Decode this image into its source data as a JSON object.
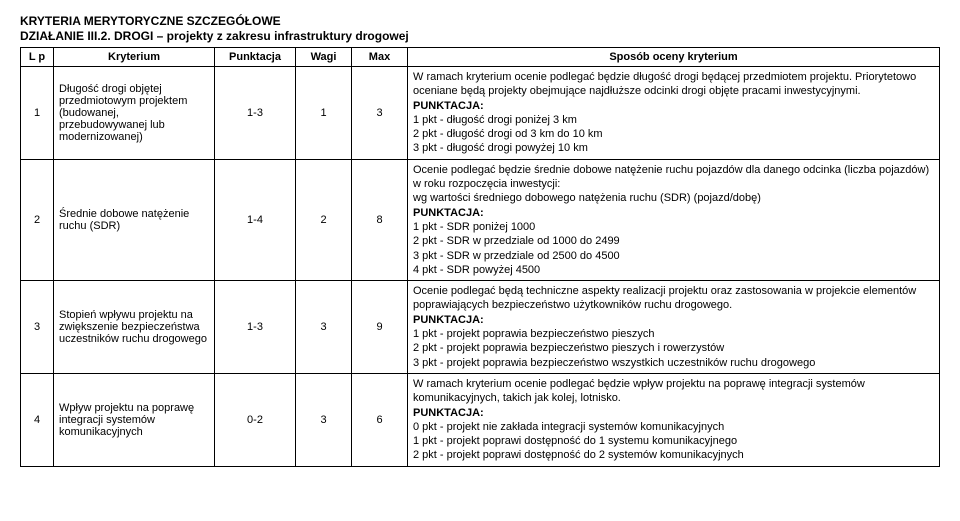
{
  "header": {
    "line1": "KRYTERIA MERYTORYCZNE SZCZEGÓŁOWE",
    "line2": "DZIAŁANIE III.2. DROGI – projekty z zakresu infrastruktury drogowej"
  },
  "table": {
    "columns": {
      "lp": "L p",
      "kryterium": "Kryterium",
      "punktacja": "Punktacja",
      "wagi": "Wagi",
      "max": "Max",
      "sposob": "Sposób oceny kryterium"
    },
    "rows": [
      {
        "lp": "1",
        "kryterium": "Długość drogi objętej przedmiotowym projektem (budowanej, przebudowywanej lub modernizowanej)",
        "punktacja": "1-3",
        "wagi": "1",
        "max": "3",
        "sposob_intro": "W ramach kryterium ocenie podlegać będzie długość drogi będącej przedmiotem projektu. Priorytetowo oceniane będą projekty obejmujące najdłuższe odcinki drogi objęte pracami inwestycyjnymi.",
        "punktacja_label": "PUNKTACJA:",
        "points": [
          "1 pkt - długość drogi poniżej 3 km",
          "2 pkt - długość drogi od 3 km do 10 km",
          "3 pkt - długość drogi powyżej 10 km"
        ]
      },
      {
        "lp": "2",
        "kryterium": "Średnie dobowe natężenie ruchu (SDR)",
        "punktacja": "1-4",
        "wagi": "2",
        "max": "8",
        "sposob_intro": "Ocenie podlegać będzie średnie dobowe natężenie ruchu pojazdów dla danego odcinka (liczba pojazdów) w roku rozpoczęcia inwestycji:",
        "sposob_extra": "wg wartości średniego dobowego natężenia ruchu (SDR) (pojazd/dobę)",
        "punktacja_label": "PUNKTACJA:",
        "points": [
          "1 pkt - SDR poniżej 1000",
          "2 pkt - SDR w przedziale od 1000 do 2499",
          "3 pkt - SDR w przedziale od 2500 do 4500",
          "4 pkt - SDR powyżej 4500"
        ]
      },
      {
        "lp": "3",
        "kryterium": "Stopień wpływu projektu na zwiększenie bezpieczeństwa uczestników ruchu drogowego",
        "punktacja": "1-3",
        "wagi": "3",
        "max": "9",
        "sposob_intro": "Ocenie podlegać będą techniczne aspekty realizacji projektu oraz zastosowania w projekcie elementów poprawiających bezpieczeństwo użytkowników ruchu drogowego.",
        "punktacja_label": "PUNKTACJA:",
        "points": [
          "1 pkt - projekt poprawia bezpieczeństwo pieszych",
          "2 pkt - projekt poprawia bezpieczeństwo pieszych i rowerzystów",
          "3 pkt - projekt poprawia bezpieczeństwo wszystkich uczestników ruchu drogowego"
        ]
      },
      {
        "lp": "4",
        "kryterium": "Wpływ projektu na poprawę integracji systemów komunikacyjnych",
        "punktacja": "0-2",
        "wagi": "3",
        "max": "6",
        "sposob_intro": "W ramach kryterium ocenie podlegać będzie wpływ projektu na poprawę integracji systemów komunikacyjnych, takich jak kolej, lotnisko.",
        "punktacja_label": "PUNKTACJA:",
        "points": [
          "0 pkt - projekt nie zakłada integracji systemów komunikacyjnych",
          "1 pkt - projekt poprawi dostępność do 1 systemu komunikacyjnego",
          "2 pkt - projekt poprawi dostępność do 2 systemów komunikacyjnych"
        ]
      }
    ]
  }
}
